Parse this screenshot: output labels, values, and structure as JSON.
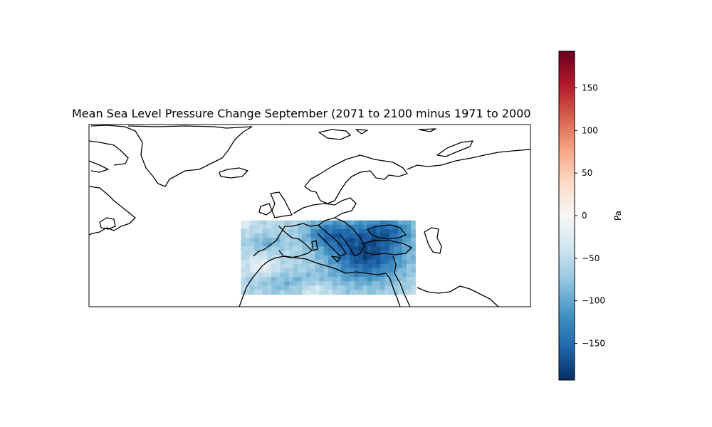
{
  "title": "Mean Sea Level Pressure Change September (2071 to 2100 minus 1971 to 2000",
  "colorbar": {
    "label": "Pa",
    "vmin": -193,
    "vmax": 193,
    "colormap": "RdBu_r",
    "ticks": [
      150,
      100,
      50,
      0,
      -50,
      -100,
      -150
    ],
    "tick_labels": [
      "150",
      "100",
      "50",
      "0",
      "−50",
      "−100",
      "−150"
    ],
    "colors": [
      "#053061",
      "#2166ac",
      "#4393c3",
      "#92c5de",
      "#d1e5f0",
      "#f7f7f7",
      "#fddbc7",
      "#f4a582",
      "#d6604d",
      "#b2182b",
      "#67001f"
    ]
  },
  "map": {
    "projection": "PlateCarree",
    "extent_lon": [
      -80,
      40
    ],
    "extent_lat": [
      20,
      70
    ],
    "data_region": {
      "lon": [
        -38.7,
        8.7
      ],
      "lat": [
        23.4,
        43.7
      ],
      "approx_range_pa": [
        -190,
        10
      ],
      "note": "strongest decreases over eastern Mediterranean and Italy/Balkans"
    },
    "coastlines": true
  }
}
